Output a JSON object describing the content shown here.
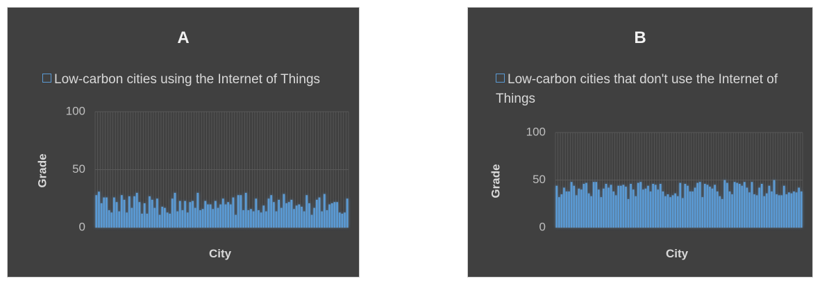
{
  "chart_data": [
    {
      "type": "bar",
      "title": "A",
      "legend": "Low-carbon cities using the Internet of Things",
      "xlabel": "City",
      "ylabel": "Grade",
      "color": "#5b9bd5",
      "ylim": [
        0,
        100
      ],
      "yticks": [
        0,
        50,
        100
      ],
      "values": [
        28,
        31,
        21,
        26,
        26,
        15,
        13,
        26,
        22,
        14,
        28,
        24,
        13,
        27,
        17,
        27,
        30,
        22,
        12,
        21,
        12,
        27,
        24,
        17,
        25,
        11,
        18,
        17,
        13,
        12,
        25,
        30,
        14,
        23,
        15,
        23,
        13,
        22,
        23,
        17,
        30,
        15,
        16,
        23,
        20,
        20,
        16,
        23,
        17,
        20,
        25,
        20,
        22,
        20,
        26,
        11,
        28,
        28,
        15,
        30,
        15,
        16,
        14,
        25,
        15,
        13,
        19,
        14,
        25,
        28,
        22,
        14,
        24,
        17,
        29,
        21,
        22,
        24,
        16,
        19,
        20,
        18,
        14,
        28,
        21,
        11,
        17,
        24,
        26,
        14,
        29,
        15,
        20,
        21,
        22,
        22,
        13,
        12,
        13,
        25
      ]
    },
    {
      "type": "bar",
      "title": "B",
      "legend": "Low-carbon cities that don't use the Internet of Things",
      "xlabel": "City",
      "ylabel": "Grade",
      "color": "#5b9bd5",
      "ylim": [
        0,
        100
      ],
      "yticks": [
        0,
        50,
        100
      ],
      "values": [
        44,
        32,
        35,
        42,
        38,
        38,
        48,
        44,
        34,
        41,
        40,
        46,
        47,
        36,
        33,
        48,
        48,
        40,
        32,
        41,
        46,
        42,
        45,
        38,
        34,
        44,
        44,
        45,
        43,
        30,
        46,
        40,
        33,
        47,
        48,
        40,
        41,
        44,
        38,
        46,
        45,
        40,
        46,
        38,
        33,
        35,
        32,
        34,
        36,
        33,
        47,
        31,
        46,
        44,
        38,
        38,
        42,
        47,
        48,
        32,
        46,
        45,
        43,
        41,
        45,
        38,
        33,
        30,
        50,
        47,
        38,
        35,
        48,
        47,
        46,
        44,
        48,
        42,
        37,
        48,
        35,
        34,
        42,
        46,
        33,
        36,
        44,
        38,
        50,
        35,
        34,
        34,
        44,
        35,
        37,
        36,
        38,
        37,
        42,
        38
      ]
    }
  ]
}
